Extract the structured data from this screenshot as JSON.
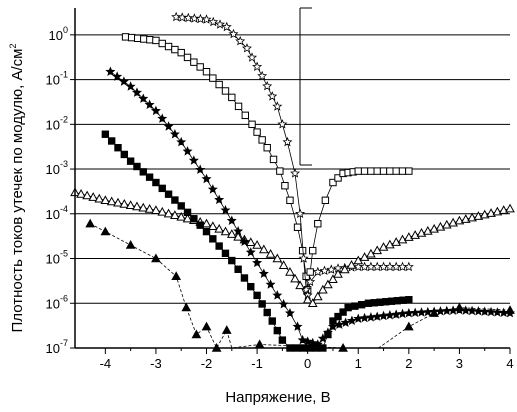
{
  "chart_data": {
    "type": "scatter",
    "title": "",
    "xlabel": "Напряжение, В",
    "ylabel": "Плотность токов утечек по модулю, А/см",
    "ylabel_sup": "2",
    "xlim": [
      -4.6,
      4
    ],
    "ylim_log10": [
      -7,
      0.6
    ],
    "yscale": "log",
    "grid": "horizontal major lines at each decade",
    "x_ticks": [
      -4,
      -3,
      -2,
      -1,
      0,
      1,
      2,
      3,
      4
    ],
    "x_tick_labels": [
      "-4",
      "-3",
      "-2",
      "-1",
      "0",
      "1",
      "2",
      "3",
      "4"
    ],
    "y_ticks": [
      -7,
      -6,
      -5,
      -4,
      -3,
      -2,
      -1,
      0
    ],
    "y_tick_labels": [
      {
        "base": "10",
        "exp": "-7"
      },
      {
        "base": "10",
        "exp": "-6"
      },
      {
        "base": "10",
        "exp": "-5"
      },
      {
        "base": "10",
        "exp": "-4"
      },
      {
        "base": "10",
        "exp": "-3"
      },
      {
        "base": "10",
        "exp": "-2"
      },
      {
        "base": "10",
        "exp": "-1"
      },
      {
        "base": "10",
        "exp": "0"
      }
    ],
    "series": [
      {
        "marker": "open-square",
        "points": [
          [
            -3.6,
            0.9
          ],
          [
            -3.0,
            0.75
          ],
          [
            -2.5,
            0.4
          ],
          [
            -2.0,
            0.15
          ],
          [
            -1.5,
            0.04
          ],
          [
            -1.1,
            0.01
          ],
          [
            -0.8,
            0.003
          ],
          [
            -0.55,
            0.0009
          ],
          [
            -0.35,
            0.0002
          ],
          [
            -0.2,
            5e-05
          ],
          [
            -0.1,
            1.5e-05
          ],
          [
            -0.03,
            4e-06
          ],
          [
            0.0,
            2e-06
          ],
          [
            0.05,
            5e-06
          ],
          [
            0.1,
            1.5e-05
          ],
          [
            0.2,
            6e-05
          ],
          [
            0.35,
            0.0002
          ],
          [
            0.5,
            0.0005
          ],
          [
            0.7,
            0.0008
          ],
          [
            1.0,
            0.0009
          ],
          [
            2.0,
            0.0009
          ]
        ]
      },
      {
        "marker": "open-star",
        "points": [
          [
            -2.6,
            2.5
          ],
          [
            -2.0,
            2.2
          ],
          [
            -1.6,
            1.5
          ],
          [
            -1.2,
            0.5
          ],
          [
            -0.9,
            0.12
          ],
          [
            -0.6,
            0.025
          ],
          [
            -0.4,
            0.004
          ],
          [
            -0.25,
            0.0008
          ],
          [
            -0.15,
            0.0001
          ],
          [
            -0.08,
            1e-05
          ],
          [
            -0.03,
            2e-06
          ],
          [
            0.0,
            1.5e-06
          ],
          [
            0.05,
            3e-06
          ],
          [
            0.2,
            5e-06
          ],
          [
            0.6,
            6e-06
          ],
          [
            1.0,
            6.5e-06
          ],
          [
            2.0,
            6.5e-06
          ]
        ]
      },
      {
        "marker": "open-triangle",
        "points": [
          [
            -4.6,
            0.0003
          ],
          [
            -4.0,
            0.0002
          ],
          [
            -3.0,
            0.00012
          ],
          [
            -2.0,
            6e-05
          ],
          [
            -1.5,
            3.5e-05
          ],
          [
            -1.0,
            2e-05
          ],
          [
            -0.6,
            1e-05
          ],
          [
            -0.35,
            5e-06
          ],
          [
            -0.15,
            2.5e-06
          ],
          [
            0.0,
            1.2e-06
          ],
          [
            0.1,
            1e-06
          ],
          [
            0.3,
            2e-06
          ],
          [
            0.6,
            4.5e-06
          ],
          [
            1.0,
            9e-06
          ],
          [
            1.5,
            1.8e-05
          ],
          [
            2.0,
            3e-05
          ],
          [
            3.0,
            7e-05
          ],
          [
            4.0,
            0.00013
          ]
        ]
      },
      {
        "marker": "filled-star",
        "points": [
          [
            -3.9,
            0.15
          ],
          [
            -3.5,
            0.07
          ],
          [
            -3.0,
            0.02
          ],
          [
            -2.5,
            0.004
          ],
          [
            -2.0,
            0.0006
          ],
          [
            -1.5,
            7e-05
          ],
          [
            -1.0,
            8e-06
          ],
          [
            -0.6,
            1.5e-06
          ],
          [
            -0.35,
            6e-07
          ],
          [
            -0.2,
            3e-07
          ],
          [
            -0.1,
            1.5e-07
          ],
          [
            0.2,
            1.2e-07
          ],
          [
            0.5,
            3e-07
          ],
          [
            1.0,
            4.5e-07
          ],
          [
            2.0,
            6e-07
          ],
          [
            3.0,
            7e-07
          ],
          [
            4.0,
            6e-07
          ]
        ]
      },
      {
        "marker": "filled-square",
        "points": [
          [
            -4.0,
            0.006
          ],
          [
            -3.5,
            0.0015
          ],
          [
            -3.0,
            0.0005
          ],
          [
            -2.5,
            0.00015
          ],
          [
            -2.0,
            4e-05
          ],
          [
            -1.5,
            9e-06
          ],
          [
            -1.0,
            1.5e-06
          ],
          [
            -0.7,
            4e-07
          ],
          [
            -0.5,
            1.5e-07
          ],
          [
            -0.35,
            1e-07
          ],
          [
            0.3,
            1e-07
          ],
          [
            0.5,
            4e-07
          ],
          [
            0.8,
            8e-07
          ],
          [
            1.2,
            1e-06
          ],
          [
            2.0,
            1.2e-06
          ]
        ]
      },
      {
        "marker": "filled-triangle",
        "points": [
          [
            -4.3,
            6e-05
          ],
          [
            -4.0,
            4e-05
          ],
          [
            -3.5,
            2e-05
          ],
          [
            -3.0,
            1e-05
          ],
          [
            -2.6,
            4e-06
          ],
          [
            -2.4,
            8e-07
          ],
          [
            -2.2,
            2e-07
          ],
          [
            -2.0,
            3e-07
          ],
          [
            -1.8,
            1e-07
          ],
          [
            -1.6,
            2.5e-07
          ],
          [
            -1.5,
            8e-08
          ],
          [
            -0.95,
            1.2e-07
          ],
          [
            0.7,
            1e-07
          ],
          [
            1.4,
            9e-08
          ],
          [
            2.0,
            3e-07
          ],
          [
            2.5,
            6e-07
          ],
          [
            3.0,
            8e-07
          ],
          [
            4.0,
            7e-07
          ]
        ]
      }
    ]
  }
}
